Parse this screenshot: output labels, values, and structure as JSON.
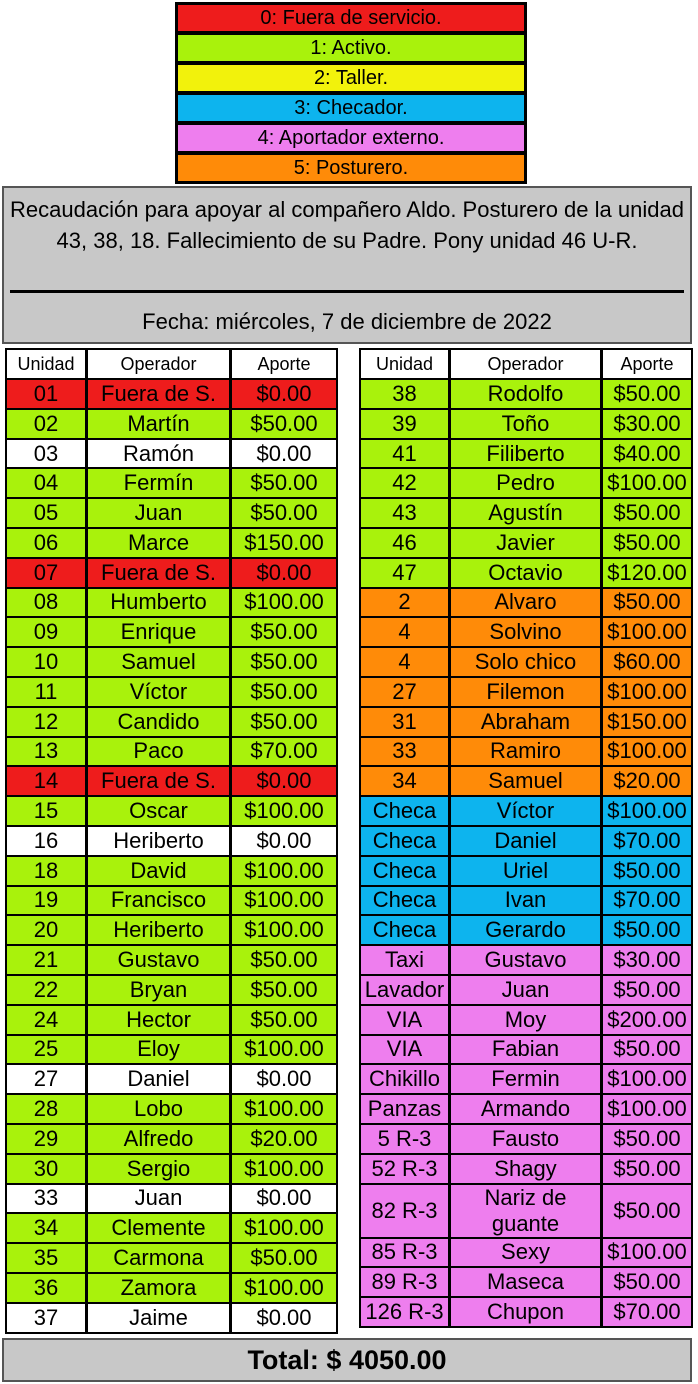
{
  "legend": [
    {
      "label": "0: Fuera de servicio.",
      "color": "#ee1c1c"
    },
    {
      "label": "1: Activo.",
      "color": "#a9f20c"
    },
    {
      "label": "2: Taller.",
      "color": "#f2f20c"
    },
    {
      "label": "3: Checador.",
      "color": "#0db4ee"
    },
    {
      "label": "4: Aportador externo.",
      "color": "#ee7eee"
    },
    {
      "label": "5: Posturero.",
      "color": "#ff8b08"
    }
  ],
  "announcement": {
    "message": "Recaudación para apoyar al compañero Aldo. Posturero de la unidad 43, 38, 18. Fallecimiento de su Padre. Pony unidad 46 U-R.",
    "date": "Fecha: miércoles, 7 de diciembre de 2022"
  },
  "headers": {
    "unit": "Unidad",
    "operator": "Operador",
    "contribution": "Aporte"
  },
  "left_table": [
    {
      "unit": "01",
      "operator": "Fuera de S.",
      "amount": "$0.00",
      "status": 0
    },
    {
      "unit": "02",
      "operator": "Martín",
      "amount": "$50.00",
      "status": 1
    },
    {
      "unit": "03",
      "operator": "Ramón",
      "amount": "$0.00",
      "status": "w"
    },
    {
      "unit": "04",
      "operator": "Fermín",
      "amount": "$50.00",
      "status": 1
    },
    {
      "unit": "05",
      "operator": "Juan",
      "amount": "$50.00",
      "status": 1
    },
    {
      "unit": "06",
      "operator": "Marce",
      "amount": "$150.00",
      "status": 1
    },
    {
      "unit": "07",
      "operator": "Fuera de S.",
      "amount": "$0.00",
      "status": 0
    },
    {
      "unit": "08",
      "operator": "Humberto",
      "amount": "$100.00",
      "status": 1
    },
    {
      "unit": "09",
      "operator": "Enrique",
      "amount": "$50.00",
      "status": 1
    },
    {
      "unit": "10",
      "operator": "Samuel",
      "amount": "$50.00",
      "status": 1
    },
    {
      "unit": "11",
      "operator": "Víctor",
      "amount": "$50.00",
      "status": 1
    },
    {
      "unit": "12",
      "operator": "Candido",
      "amount": "$50.00",
      "status": 1
    },
    {
      "unit": "13",
      "operator": "Paco",
      "amount": "$70.00",
      "status": 1
    },
    {
      "unit": "14",
      "operator": "Fuera de S.",
      "amount": "$0.00",
      "status": 0
    },
    {
      "unit": "15",
      "operator": "Oscar",
      "amount": "$100.00",
      "status": 1
    },
    {
      "unit": "16",
      "operator": "Heriberto",
      "amount": "$0.00",
      "status": "w"
    },
    {
      "unit": "18",
      "operator": "David",
      "amount": "$100.00",
      "status": 1
    },
    {
      "unit": "19",
      "operator": "Francisco",
      "amount": "$100.00",
      "status": 1
    },
    {
      "unit": "20",
      "operator": "Heriberto",
      "amount": "$100.00",
      "status": 1
    },
    {
      "unit": "21",
      "operator": "Gustavo",
      "amount": "$50.00",
      "status": 1
    },
    {
      "unit": "22",
      "operator": "Bryan",
      "amount": "$50.00",
      "status": 1
    },
    {
      "unit": "24",
      "operator": "Hector",
      "amount": "$50.00",
      "status": 1
    },
    {
      "unit": "25",
      "operator": "Eloy",
      "amount": "$100.00",
      "status": 1
    },
    {
      "unit": "27",
      "operator": "Daniel",
      "amount": "$0.00",
      "status": "w"
    },
    {
      "unit": "28",
      "operator": "Lobo",
      "amount": "$100.00",
      "status": 1
    },
    {
      "unit": "29",
      "operator": "Alfredo",
      "amount": "$20.00",
      "status": 1
    },
    {
      "unit": "30",
      "operator": "Sergio",
      "amount": "$100.00",
      "status": 1
    },
    {
      "unit": "33",
      "operator": "Juan",
      "amount": "$0.00",
      "status": "w"
    },
    {
      "unit": "34",
      "operator": "Clemente",
      "amount": "$100.00",
      "status": 1
    },
    {
      "unit": "35",
      "operator": "Carmona",
      "amount": "$50.00",
      "status": 1
    },
    {
      "unit": "36",
      "operator": "Zamora",
      "amount": "$100.00",
      "status": 1
    },
    {
      "unit": "37",
      "operator": "Jaime",
      "amount": "$0.00",
      "status": "w"
    }
  ],
  "right_table": [
    {
      "unit": "38",
      "operator": "Rodolfo",
      "amount": "$50.00",
      "status": 1
    },
    {
      "unit": "39",
      "operator": "Toño",
      "amount": "$30.00",
      "status": 1
    },
    {
      "unit": "41",
      "operator": "Filiberto",
      "amount": "$40.00",
      "status": 1
    },
    {
      "unit": "42",
      "operator": "Pedro",
      "amount": "$100.00",
      "status": 1
    },
    {
      "unit": "43",
      "operator": "Agustín",
      "amount": "$50.00",
      "status": 1
    },
    {
      "unit": "46",
      "operator": "Javier",
      "amount": "$50.00",
      "status": 1
    },
    {
      "unit": "47",
      "operator": "Octavio",
      "amount": "$120.00",
      "status": 1
    },
    {
      "unit": "2",
      "operator": "Alvaro",
      "amount": "$50.00",
      "status": 5
    },
    {
      "unit": "4",
      "operator": "Solvino",
      "amount": "$100.00",
      "status": 5
    },
    {
      "unit": "4",
      "operator": "Solo chico",
      "amount": "$60.00",
      "status": 5
    },
    {
      "unit": "27",
      "operator": "Filemon",
      "amount": "$100.00",
      "status": 5
    },
    {
      "unit": "31",
      "operator": "Abraham",
      "amount": "$150.00",
      "status": 5
    },
    {
      "unit": "33",
      "operator": "Ramiro",
      "amount": "$100.00",
      "status": 5
    },
    {
      "unit": "34",
      "operator": "Samuel",
      "amount": "$20.00",
      "status": 5
    },
    {
      "unit": "Checa",
      "operator": "Víctor",
      "amount": "$100.00",
      "status": 3
    },
    {
      "unit": "Checa",
      "operator": "Daniel",
      "amount": "$70.00",
      "status": 3
    },
    {
      "unit": "Checa",
      "operator": "Uriel",
      "amount": "$50.00",
      "status": 3
    },
    {
      "unit": "Checa",
      "operator": "Ivan",
      "amount": "$70.00",
      "status": 3
    },
    {
      "unit": "Checa",
      "operator": "Gerardo",
      "amount": "$50.00",
      "status": 3
    },
    {
      "unit": "Taxi",
      "operator": "Gustavo",
      "amount": "$30.00",
      "status": 4
    },
    {
      "unit": "Lavador",
      "operator": "Juan",
      "amount": "$50.00",
      "status": 4
    },
    {
      "unit": "VIA",
      "operator": "Moy",
      "amount": "$200.00",
      "status": 4
    },
    {
      "unit": "VIA",
      "operator": "Fabian",
      "amount": "$50.00",
      "status": 4
    },
    {
      "unit": "Chikillo",
      "operator": "Fermin",
      "amount": "$100.00",
      "status": 4
    },
    {
      "unit": "Panzas",
      "operator": "Armando",
      "amount": "$100.00",
      "status": 4
    },
    {
      "unit": "5 R-3",
      "operator": "Fausto",
      "amount": "$50.00",
      "status": 4
    },
    {
      "unit": "52 R-3",
      "operator": "Shagy",
      "amount": "$50.00",
      "status": 4
    },
    {
      "unit": "82 R-3",
      "operator": "Nariz de guante",
      "amount": "$50.00",
      "status": 4,
      "tall": true
    },
    {
      "unit": "85 R-3",
      "operator": "Sexy",
      "amount": "$100.00",
      "status": 4
    },
    {
      "unit": "89 R-3",
      "operator": "Maseca",
      "amount": "$50.00",
      "status": 4
    },
    {
      "unit": "126 R-3",
      "operator": "Chupon",
      "amount": "$70.00",
      "status": 4
    }
  ],
  "total": "Total: $ 4050.00"
}
